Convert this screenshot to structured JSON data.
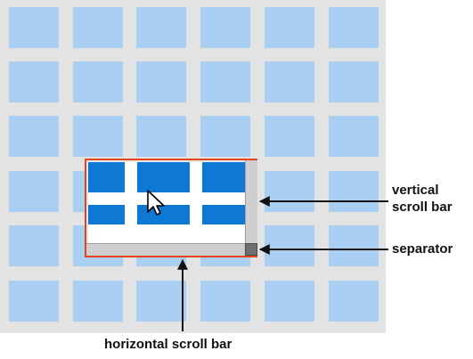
{
  "labels": {
    "vertical_line1": "vertical",
    "vertical_line2": "scroll bar",
    "separator": "separator",
    "horizontal": "horizontal scroll bar"
  },
  "colors": {
    "background": "#e3e3e3",
    "tile": "#a9d0f2",
    "viewport_tile": "#0e78d5",
    "viewport_border": "#e2441c",
    "scrollbar": "#cfcfcf",
    "separator": "#6f6f6f"
  },
  "icons": {
    "pointer": "mouse-cursor-icon"
  }
}
